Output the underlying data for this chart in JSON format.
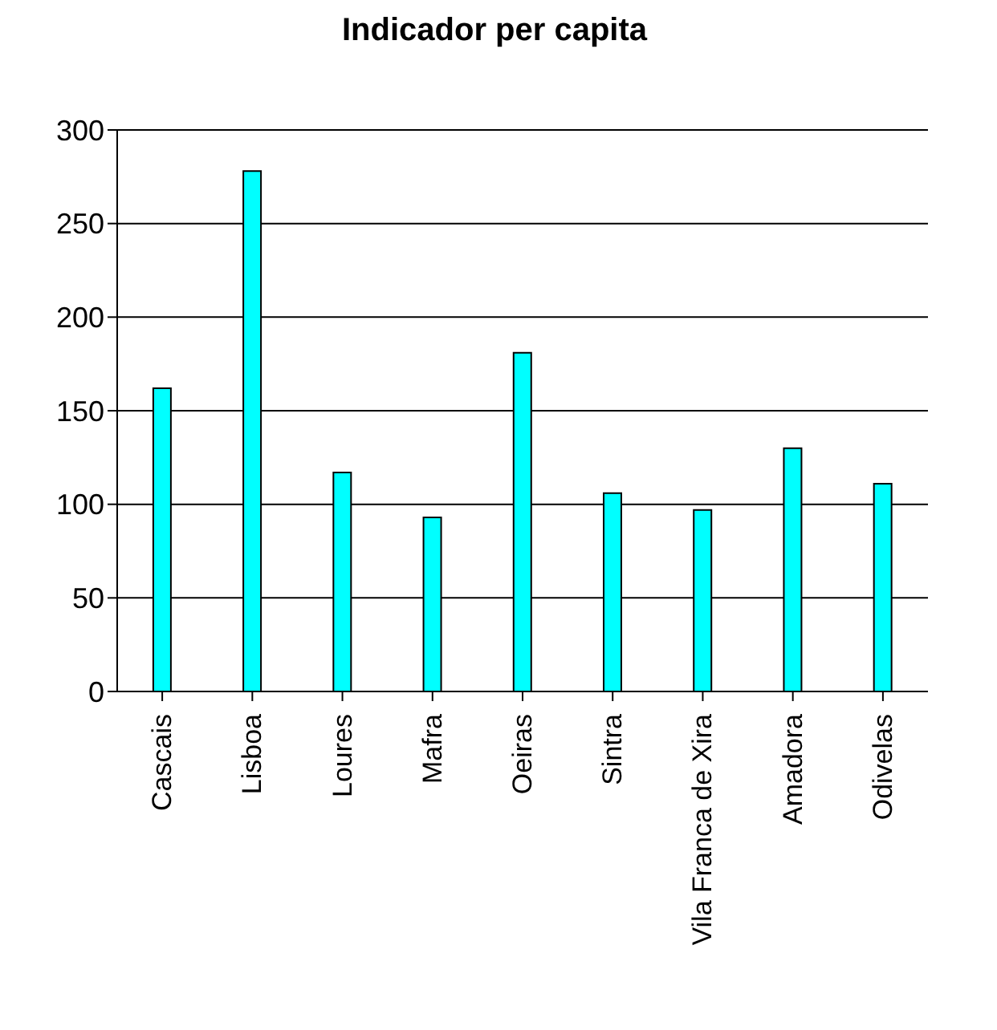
{
  "chart_data": {
    "type": "bar",
    "title": "Indicador per capita",
    "categories": [
      "Cascais",
      "Lisboa",
      "Loures",
      "Mafra",
      "Oeiras",
      "Sintra",
      "Vila Franca de Xira",
      "Amadora",
      "Odivelas"
    ],
    "values": [
      162,
      278,
      117,
      93,
      181,
      106,
      97,
      130,
      111
    ],
    "color": "#00ffff",
    "ylim": [
      0,
      300
    ],
    "yticks": [
      0,
      50,
      100,
      150,
      200,
      250,
      300
    ],
    "grid": "y"
  }
}
